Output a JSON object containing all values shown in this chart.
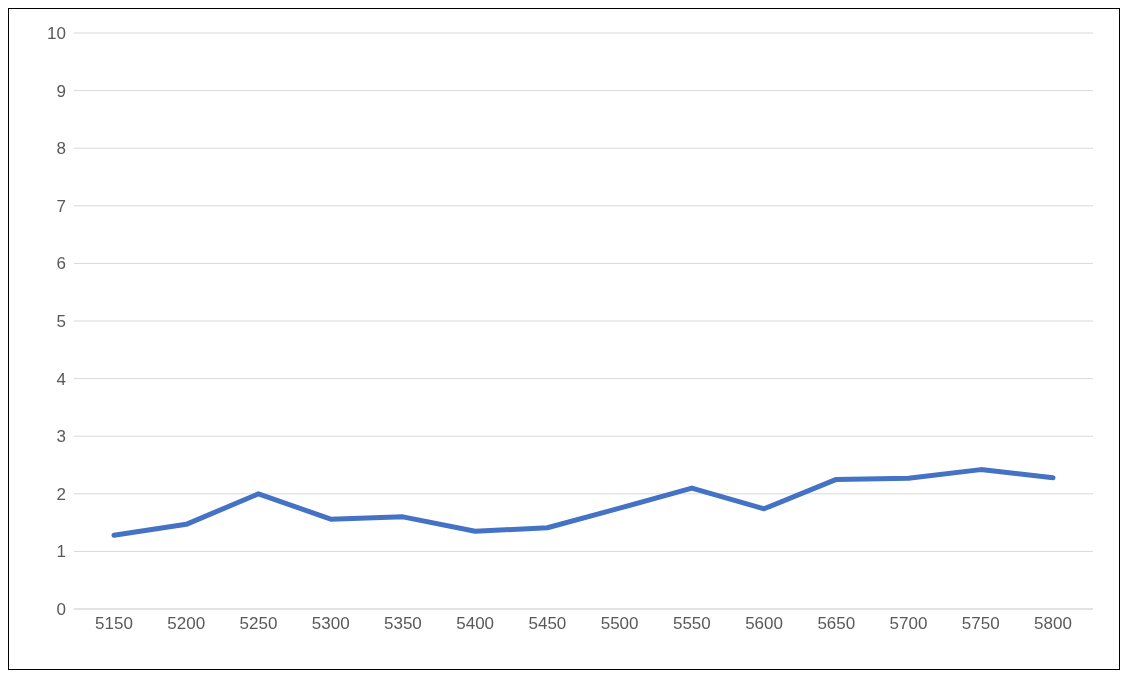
{
  "chart_data": {
    "type": "line",
    "categories": [
      "5150",
      "5200",
      "5250",
      "5300",
      "5350",
      "5400",
      "5450",
      "5500",
      "5550",
      "5600",
      "5650",
      "5700",
      "5750",
      "5800"
    ],
    "series": [
      {
        "color": "#4472c4",
        "values": [
          1.28,
          1.47,
          2.0,
          1.56,
          1.6,
          1.35,
          1.41,
          1.75,
          2.1,
          1.74,
          2.25,
          2.27,
          2.42,
          2.28
        ]
      }
    ],
    "ylim": [
      0,
      10
    ],
    "yticks": [
      0,
      1,
      2,
      3,
      4,
      5,
      6,
      7,
      8,
      9,
      10
    ],
    "grid": "y",
    "legend": false,
    "marker": "none",
    "line_style": "solid"
  }
}
